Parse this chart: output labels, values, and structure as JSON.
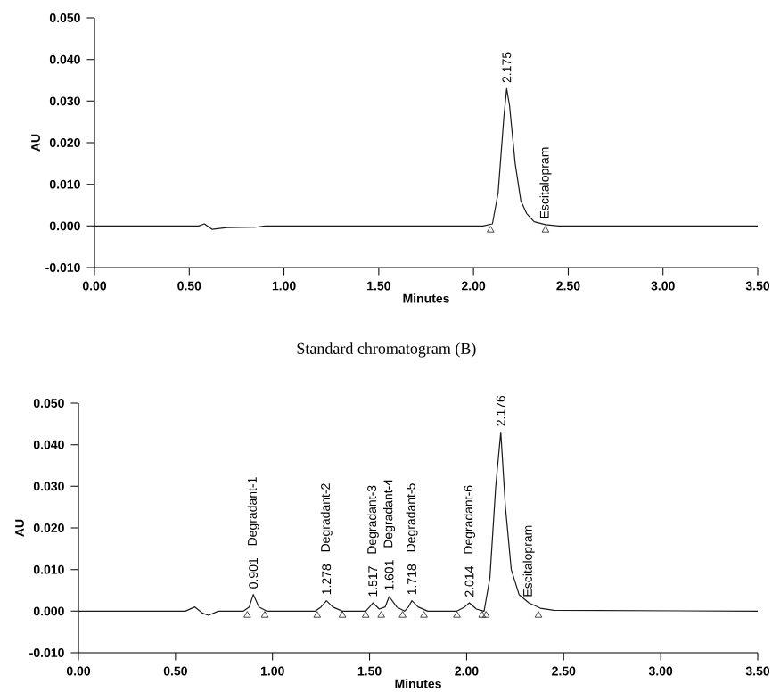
{
  "chart_data": [
    {
      "type": "line",
      "xlabel": "Minutes",
      "ylabel": "AU",
      "xlim": [
        0,
        3.5
      ],
      "ylim": [
        -0.01,
        0.05
      ],
      "xticks": [
        {
          "value": 0,
          "label": "0.00"
        },
        {
          "value": 0.5,
          "label": "0.50"
        },
        {
          "value": 1,
          "label": "1.00"
        },
        {
          "value": 1.5,
          "label": "1.50"
        },
        {
          "value": 2,
          "label": "2.00"
        },
        {
          "value": 2.5,
          "label": "2.50"
        },
        {
          "value": 3,
          "label": "3.00"
        },
        {
          "value": 3.5,
          "label": "3.50"
        }
      ],
      "yticks": [
        {
          "value": -0.01,
          "label": "-0.010"
        },
        {
          "value": 0,
          "label": "0.000"
        },
        {
          "value": 0.01,
          "label": "0.010"
        },
        {
          "value": 0.02,
          "label": "0.020"
        },
        {
          "value": 0.03,
          "label": "0.030"
        },
        {
          "value": 0.04,
          "label": "0.040"
        },
        {
          "value": 0.05,
          "label": "0.050"
        }
      ],
      "series": [
        {
          "color": "#1a1a1a",
          "x": [
            0,
            0.55,
            0.58,
            0.62,
            0.7,
            0.85,
            0.9,
            2.05,
            2.1,
            2.13,
            2.16,
            2.175,
            2.19,
            2.22,
            2.25,
            2.28,
            2.32,
            2.38,
            2.45,
            3.5
          ],
          "values": [
            0,
            0,
            0.0005,
            -0.0008,
            -0.0004,
            -0.0003,
            0,
            0,
            0.0005,
            0.008,
            0.026,
            0.033,
            0.029,
            0.015,
            0.006,
            0.003,
            0.001,
            0.0003,
            0,
            0
          ]
        },
        {
          "type": "scatter",
          "marker": "triangle",
          "color": "#1a1a1a",
          "x": [
            2.09,
            2.38
          ],
          "values": [
            -0.001,
            -0.001
          ]
        }
      ],
      "annotations": [
        "Standard chromatogram (B)",
        {
          "text": "2.175",
          "x": 2.175,
          "y": 0.033
        },
        {
          "text": "Escitalopram",
          "x": 2.38,
          "y": 0.0003
        }
      ]
    },
    {
      "type": "line",
      "xlabel": "Minutes",
      "ylabel": "AU",
      "xlim": [
        0,
        3.5
      ],
      "ylim": [
        -0.01,
        0.05
      ],
      "xticks": [
        {
          "value": 0,
          "label": "0.00"
        },
        {
          "value": 0.5,
          "label": "0.50"
        },
        {
          "value": 1,
          "label": "1.00"
        },
        {
          "value": 1.5,
          "label": "1.50"
        },
        {
          "value": 2,
          "label": "2.00"
        },
        {
          "value": 2.5,
          "label": "2.50"
        },
        {
          "value": 3,
          "label": "3.00"
        },
        {
          "value": 3.5,
          "label": "3.50"
        }
      ],
      "yticks": [
        {
          "value": -0.01,
          "label": "-0.010"
        },
        {
          "value": 0,
          "label": "0.000"
        },
        {
          "value": 0.01,
          "label": "0.010"
        },
        {
          "value": 0.02,
          "label": "0.020"
        },
        {
          "value": 0.03,
          "label": "0.030"
        },
        {
          "value": 0.04,
          "label": "0.040"
        },
        {
          "value": 0.05,
          "label": "0.050"
        }
      ],
      "series": [
        {
          "color": "#1a1a1a",
          "x": [
            0,
            0.55,
            0.6,
            0.64,
            0.67,
            0.72,
            0.85,
            0.88,
            0.901,
            0.93,
            0.97,
            1.22,
            1.25,
            1.278,
            1.31,
            1.36,
            1.48,
            1.5,
            1.517,
            1.55,
            1.58,
            1.601,
            1.64,
            1.68,
            1.7,
            1.718,
            1.75,
            1.8,
            1.95,
            1.99,
            2.014,
            2.05,
            2.09,
            2.12,
            2.15,
            2.176,
            2.2,
            2.23,
            2.27,
            2.32,
            2.38,
            2.45,
            3.5
          ],
          "values": [
            0,
            0,
            0.001,
            -0.0005,
            -0.001,
            0,
            0,
            0.001,
            0.004,
            0.001,
            0,
            0,
            0.001,
            0.0025,
            0.001,
            0,
            0,
            0.001,
            0.002,
            0.0005,
            0.001,
            0.0035,
            0.001,
            0,
            0.001,
            0.0025,
            0.001,
            0,
            0,
            0.001,
            0.002,
            0.0005,
            0,
            0.008,
            0.03,
            0.043,
            0.025,
            0.01,
            0.004,
            0.002,
            0.0007,
            0.0002,
            0
          ]
        },
        {
          "type": "scatter",
          "marker": "triangle",
          "color": "#1a1a1a",
          "x": [
            0.87,
            0.96,
            1.23,
            1.36,
            1.48,
            1.56,
            1.67,
            1.78,
            1.95,
            2.08,
            2.1,
            2.37
          ],
          "values": [
            -0.001,
            -0.001,
            -0.001,
            -0.001,
            -0.001,
            -0.001,
            -0.001,
            -0.001,
            -0.001,
            -0.001,
            -0.001,
            -0.001
          ]
        }
      ],
      "annotations": [
        {
          "text": "0.901",
          "x": 0.901,
          "y": 0.004
        },
        "Degradant-1",
        {
          "text": "1.278",
          "x": 1.278,
          "y": 0.0025
        },
        "Degradant-2",
        {
          "text": "1.517",
          "x": 1.517,
          "y": 0.002
        },
        "Degradant-3",
        {
          "text": "1.601",
          "x": 1.601,
          "y": 0.0035
        },
        "Degradant-4",
        {
          "text": "1.718",
          "x": 1.718,
          "y": 0.0025
        },
        "Degradant-5",
        {
          "text": "2.014",
          "x": 2.014,
          "y": 0.002
        },
        "Degradant-6",
        {
          "text": "2.176",
          "x": 2.176,
          "y": 0.043
        },
        {
          "text": "Escitalopram",
          "x": 2.32,
          "y": 0.002
        }
      ]
    }
  ]
}
